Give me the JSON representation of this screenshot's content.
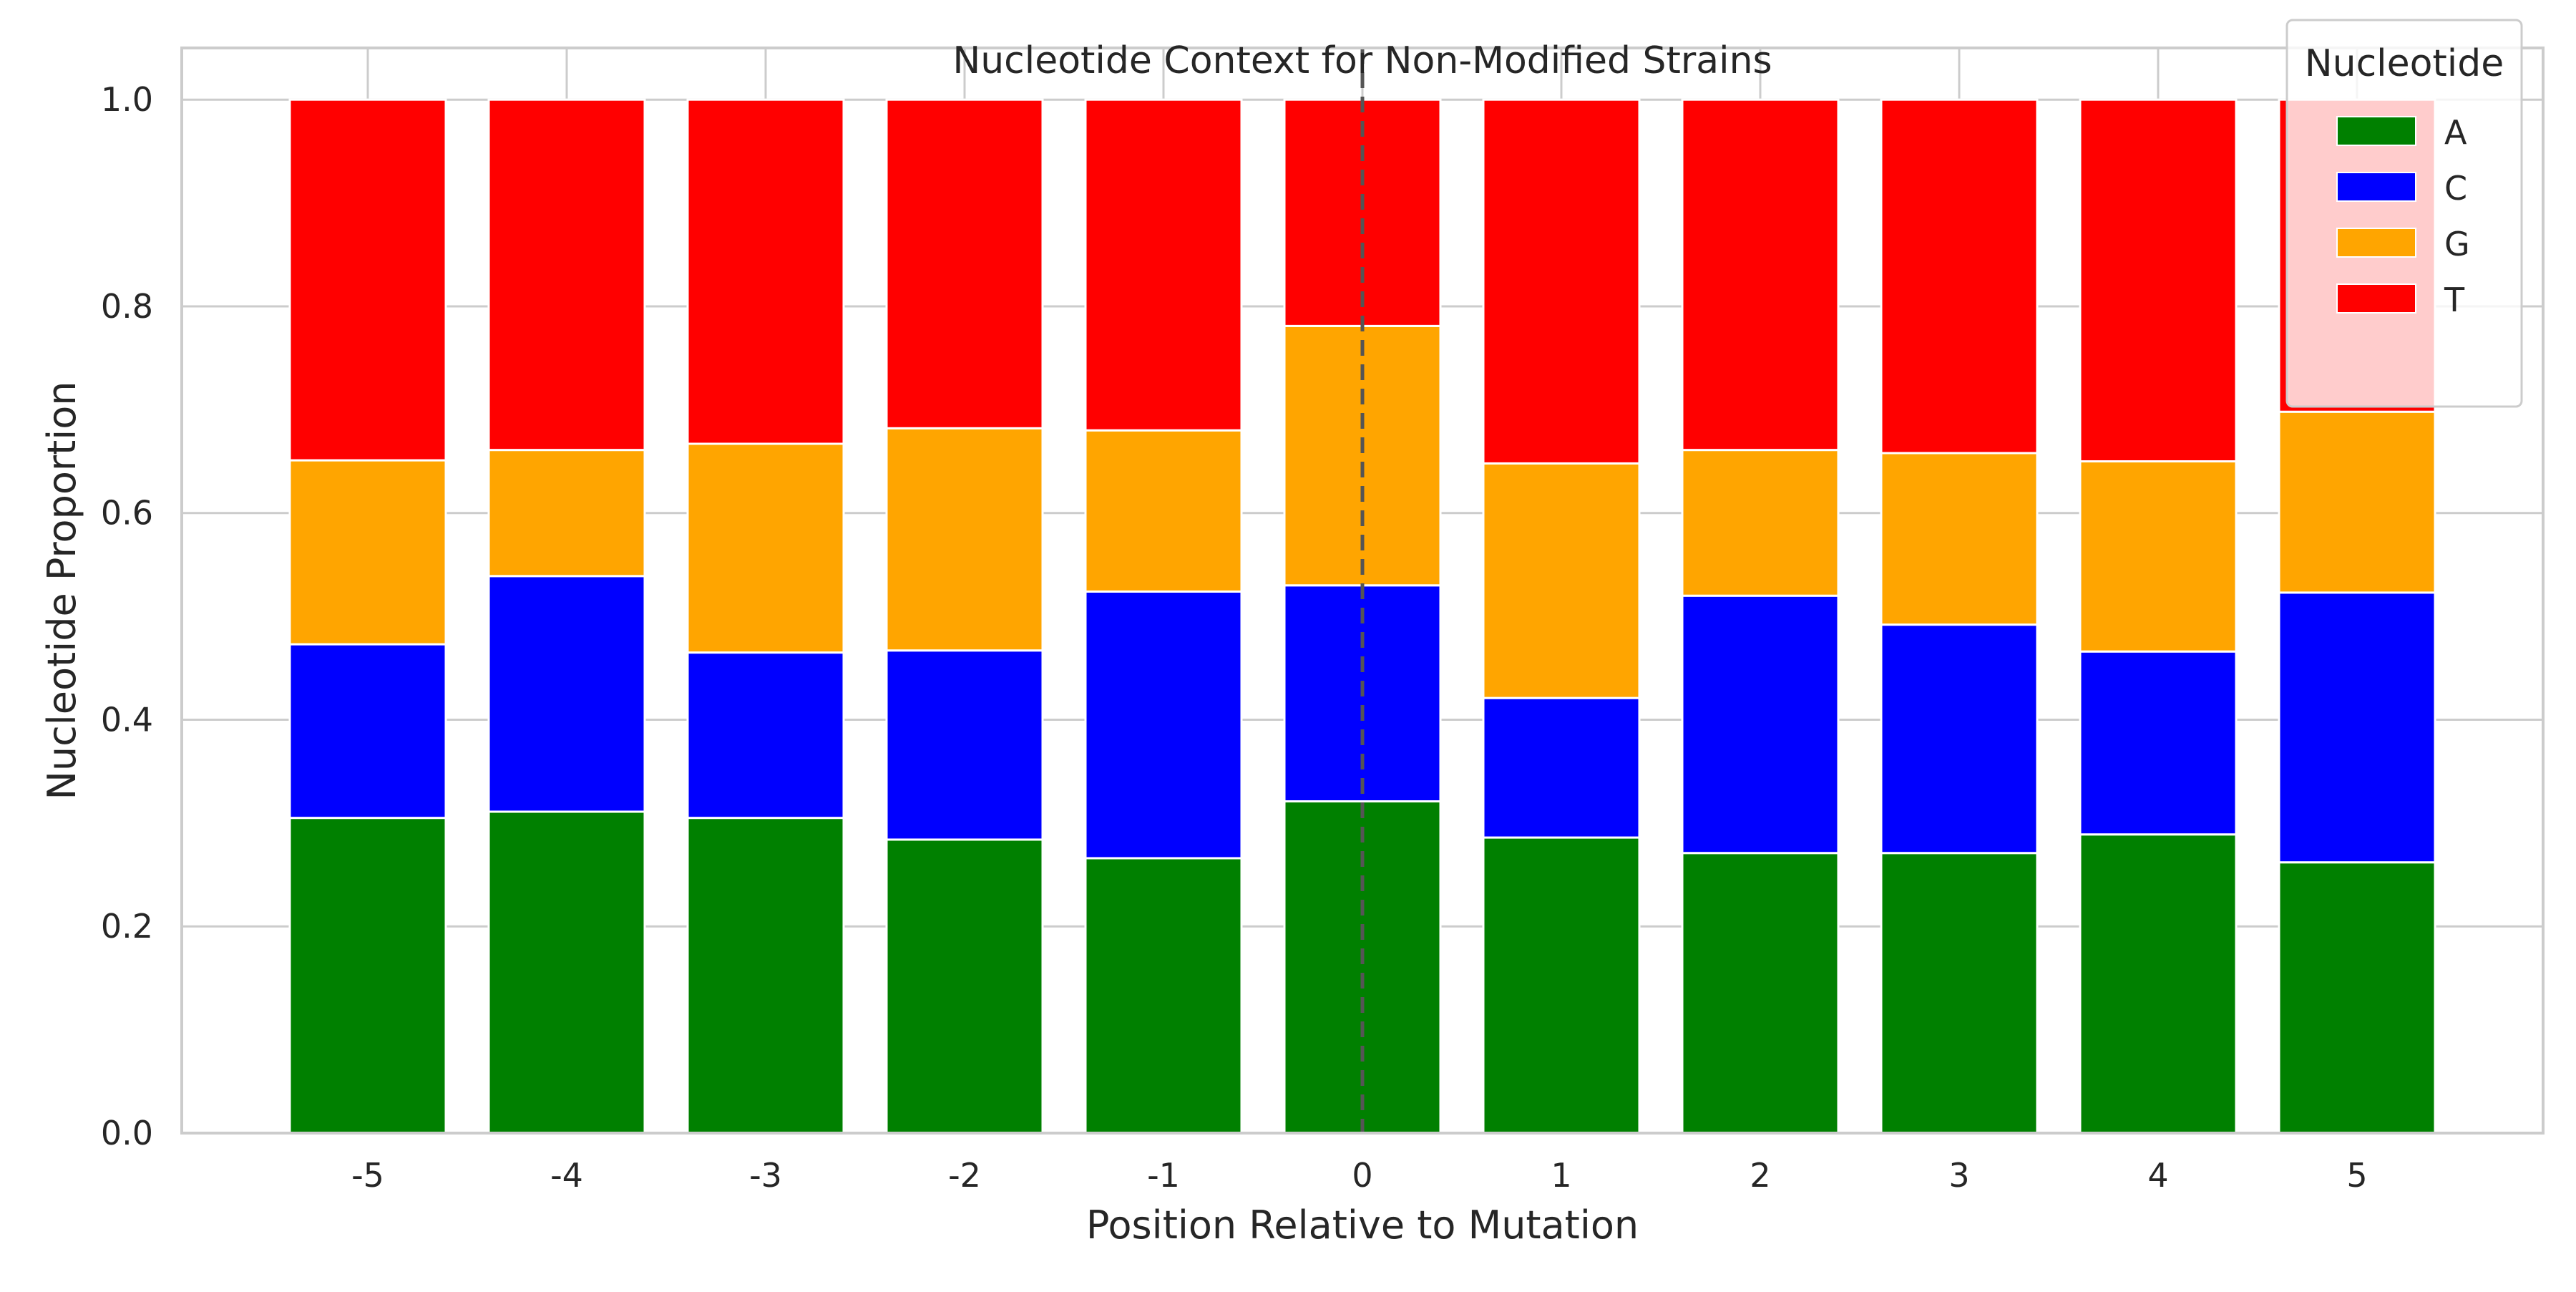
{
  "chart_data": {
    "type": "bar",
    "stacked": true,
    "title": "Nucleotide Context for Non-Modified Strains",
    "xlabel": "Position Relative to Mutation",
    "ylabel": "Nucleotide Proportion",
    "categories": [
      "-5",
      "-4",
      "-3",
      "-2",
      "-1",
      "0",
      "1",
      "2",
      "3",
      "4",
      "5"
    ],
    "ylim": [
      0,
      1.05
    ],
    "yticks": [
      "0.0",
      "0.2",
      "0.4",
      "0.6",
      "0.8",
      "1.0"
    ],
    "grid": true,
    "reference_line": {
      "x": "0",
      "style": "dashed"
    },
    "series": [
      {
        "name": "A",
        "color": "#008000",
        "values": [
          0.305,
          0.311,
          0.305,
          0.284,
          0.266,
          0.321,
          0.286,
          0.271,
          0.271,
          0.289,
          0.262
        ]
      },
      {
        "name": "C",
        "color": "#0000ff",
        "values": [
          0.168,
          0.228,
          0.16,
          0.183,
          0.258,
          0.209,
          0.135,
          0.249,
          0.221,
          0.177,
          0.261
        ]
      },
      {
        "name": "G",
        "color": "#ffa500",
        "values": [
          0.178,
          0.122,
          0.202,
          0.215,
          0.156,
          0.251,
          0.227,
          0.141,
          0.166,
          0.184,
          0.175
        ]
      },
      {
        "name": "T",
        "color": "#ff0000",
        "values": [
          0.349,
          0.339,
          0.333,
          0.318,
          0.32,
          0.219,
          0.352,
          0.339,
          0.342,
          0.35,
          0.302
        ]
      }
    ],
    "legend": {
      "title": "Nucleotide",
      "position": "top-right"
    }
  }
}
